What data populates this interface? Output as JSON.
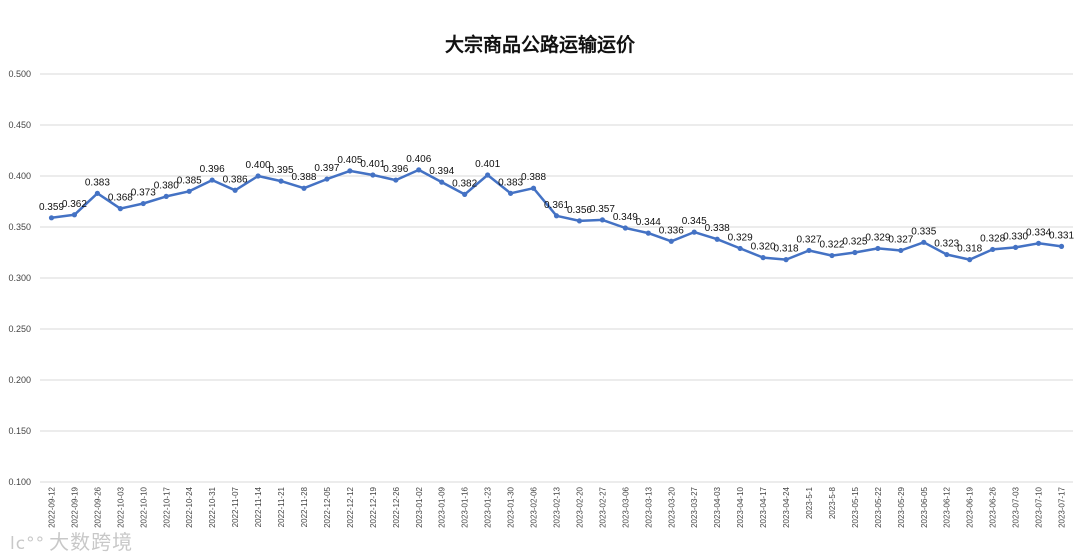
{
  "chart_data": {
    "type": "line",
    "title": "大宗商品公路运输运价",
    "xlabel": "",
    "ylabel": "",
    "ylim": [
      0.1,
      0.5
    ],
    "y_ticks": [
      "0.100",
      "0.150",
      "0.200",
      "0.250",
      "0.300",
      "0.350",
      "0.400",
      "0.450",
      "0.500"
    ],
    "grid": "horizontal",
    "line_color": "#4472c4",
    "categories": [
      "2022-09-12",
      "2022-09-19",
      "2022-09-26",
      "2022-10-03",
      "2022-10-10",
      "2022-10-17",
      "2022-10-24",
      "2022-10-31",
      "2022-11-07",
      "2022-11-14",
      "2022-11-21",
      "2022-11-28",
      "2022-12-05",
      "2022-12-12",
      "2022-12-19",
      "2022-12-26",
      "2023-01-02",
      "2023-01-09",
      "2023-01-16",
      "2023-01-23",
      "2023-01-30",
      "2023-02-06",
      "2023-02-13",
      "2023-02-20",
      "2023-02-27",
      "2023-03-06",
      "2023-03-13",
      "2023-03-20",
      "2023-03-27",
      "2023-04-03",
      "2023-04-10",
      "2023-04-17",
      "2023-04-24",
      "2023-5-1",
      "2023-5-8",
      "2023-05-15",
      "2023-05-22",
      "2023-05-29",
      "2023-06-05",
      "2023-06-12",
      "2023-06-19",
      "2023-06-26",
      "2023-07-03",
      "2023-07-10",
      "2023-07-17"
    ],
    "values": [
      0.359,
      0.362,
      0.383,
      0.368,
      0.373,
      0.38,
      0.385,
      0.396,
      0.386,
      0.4,
      0.395,
      0.388,
      0.397,
      0.405,
      0.401,
      0.396,
      0.406,
      0.394,
      0.382,
      0.401,
      0.383,
      0.388,
      0.361,
      0.356,
      0.357,
      0.349,
      0.344,
      0.336,
      0.345,
      0.338,
      0.329,
      0.32,
      0.318,
      0.327,
      0.322,
      0.325,
      0.329,
      0.327,
      0.335,
      0.323,
      0.318,
      0.328,
      0.33,
      0.334,
      0.331
    ],
    "value_labels": [
      "0.359",
      "0.362",
      "0.383",
      "0.368",
      "0.373",
      "0.380",
      "0.385",
      "0.396",
      "0.386",
      "0.400",
      "0.395",
      "0.388",
      "0.397",
      "0.405",
      "0.401",
      "0.396",
      "0.406",
      "0.394",
      "0.382",
      "0.401",
      "0.383",
      "0.388",
      "0.361",
      "0.356",
      "0.357",
      "0.349",
      "0.344",
      "0.336",
      "0.345",
      "0.338",
      "0.329",
      "0.320",
      "0.318",
      "0.327",
      "0.322",
      "0.325",
      "0.329",
      "0.327",
      "0.335",
      "0.323",
      "0.318",
      "0.328",
      "0.330",
      "0.334",
      "0.331"
    ]
  },
  "watermark": {
    "mark": "lc°°",
    "text": "大数跨境",
    "icon": "brand-logo-icon"
  }
}
